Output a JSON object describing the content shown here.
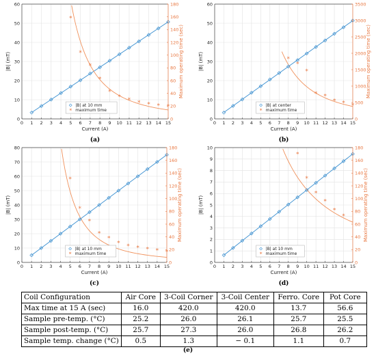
{
  "chart_data": [
    {
      "type": "line",
      "panel_label": "(a)",
      "xlabel": "Current (A)",
      "ylabel": "|B| (mT)",
      "y2label": "Maximum operating time (sec)",
      "xlim": [
        0,
        15
      ],
      "ylim": [
        0,
        60
      ],
      "y2lim": [
        0,
        180
      ],
      "xticks": [
        "0",
        "1",
        "2",
        "3",
        "4",
        "5",
        "6",
        "7",
        "8",
        "9",
        "10",
        "11",
        "12",
        "13",
        "14",
        "15"
      ],
      "yticks": [
        "0",
        "10",
        "20",
        "30",
        "40",
        "50",
        "60"
      ],
      "y2ticks": [
        "0",
        "20",
        "40",
        "60",
        "80",
        "100",
        "120",
        "140",
        "160",
        "180"
      ],
      "grid": true,
      "legend_placement": "lower-center",
      "series": [
        {
          "name": "|B| at 10 mm",
          "axis": "left",
          "marker": "diamond",
          "color": "#3a8fd0",
          "x": [
            1,
            2,
            3,
            4,
            5,
            6,
            7,
            8,
            9,
            10,
            11,
            12,
            13,
            14,
            15
          ],
          "values": [
            3.3,
            6.7,
            10.1,
            13.5,
            16.9,
            20.2,
            23.7,
            27.0,
            30.4,
            33.8,
            37.2,
            40.5,
            43.9,
            47.3,
            50.7
          ]
        },
        {
          "name": "maximum time",
          "axis": "right",
          "marker": "asterisk",
          "color": "#e8763f",
          "x": [
            5,
            6,
            7,
            8,
            9,
            10,
            11,
            12,
            13,
            14,
            15
          ],
          "values": [
            158,
            104,
            84,
            63,
            43,
            35,
            30,
            26,
            23,
            21,
            20
          ]
        }
      ],
      "fit_line_color": "#3a8fd0",
      "fit_curve": {
        "axis": "right",
        "color": "#f0905a",
        "x_start": 5.1,
        "y_start": 178,
        "x_end": 15,
        "y_end": 14
      }
    },
    {
      "type": "line",
      "panel_label": "(b)",
      "xlabel": "Current (A)",
      "ylabel": "|B| (mT)",
      "y2label": "Maximum operating time (sec)",
      "xlim": [
        0,
        15
      ],
      "ylim": [
        0,
        60
      ],
      "y2lim": [
        0,
        3500
      ],
      "xticks": [
        "0",
        "1",
        "2",
        "3",
        "4",
        "5",
        "6",
        "7",
        "8",
        "9",
        "10",
        "11",
        "12",
        "13",
        "14",
        "15"
      ],
      "yticks": [
        "0",
        "10",
        "20",
        "30",
        "40",
        "50",
        "60"
      ],
      "y2ticks": [
        "0",
        "500",
        "1000",
        "1500",
        "2000",
        "2500",
        "3000",
        "3500"
      ],
      "grid": true,
      "legend_placement": "lower-center",
      "series": [
        {
          "name": "|B| at center",
          "axis": "left",
          "marker": "diamond",
          "color": "#3a8fd0",
          "x": [
            1,
            2,
            3,
            4,
            5,
            6,
            7,
            8,
            9,
            10,
            11,
            12,
            13,
            14,
            15
          ],
          "values": [
            3.3,
            6.8,
            10.2,
            13.7,
            17.1,
            20.6,
            24.0,
            27.4,
            30.7,
            34.2,
            37.6,
            41.0,
            44.5,
            47.9,
            51.4
          ]
        },
        {
          "name": "maximum time",
          "axis": "right",
          "marker": "asterisk",
          "color": "#e8763f",
          "x": [
            8,
            9,
            10,
            11,
            12,
            13,
            14,
            15
          ],
          "values": [
            1840,
            1680,
            1460,
            770,
            700,
            560,
            490,
            420
          ]
        }
      ],
      "fit_line_color": "#3a8fd0",
      "fit_curve": {
        "axis": "right",
        "color": "#f0905a",
        "x_start": 7.3,
        "y_start": 2050,
        "x_end": 15,
        "y_end": 380
      }
    },
    {
      "type": "line",
      "panel_label": "(c)",
      "xlabel": "Current (A)",
      "ylabel": "|B| (mT)",
      "y2label": "Maximum operating time (sec)",
      "xlim": [
        0,
        15
      ],
      "ylim": [
        0,
        80
      ],
      "y2lim": [
        0,
        180
      ],
      "xticks": [
        "0",
        "1",
        "2",
        "3",
        "4",
        "5",
        "6",
        "7",
        "8",
        "9",
        "10",
        "11",
        "12",
        "13",
        "14",
        "15"
      ],
      "yticks": [
        "0",
        "10",
        "20",
        "30",
        "40",
        "50",
        "60",
        "70",
        "80"
      ],
      "y2ticks": [
        "0",
        "20",
        "40",
        "60",
        "80",
        "100",
        "120",
        "140",
        "160",
        "180"
      ],
      "grid": true,
      "legend_placement": "lower-center",
      "series": [
        {
          "name": "|B| at 10 mm",
          "axis": "left",
          "marker": "diamond",
          "color": "#3a8fd0",
          "x": [
            1,
            2,
            3,
            4,
            5,
            6,
            7,
            8,
            9,
            10,
            11,
            12,
            13,
            14,
            15
          ],
          "values": [
            5.0,
            10.0,
            15.0,
            20.0,
            25.0,
            30.0,
            35.0,
            40.0,
            45.0,
            50.0,
            55.0,
            60.0,
            65.0,
            70.0,
            75.0
          ]
        },
        {
          "name": "maximum time",
          "axis": "right",
          "marker": "asterisk",
          "color": "#e8763f",
          "x": [
            5,
            6,
            7,
            8,
            9,
            10,
            11,
            12,
            13,
            14,
            15
          ],
          "values": [
            131,
            85,
            65,
            46,
            38,
            31,
            26,
            23,
            21,
            19,
            17
          ]
        }
      ],
      "fit_line_color": "#3a8fd0",
      "fit_curve": {
        "axis": "right",
        "color": "#f0905a",
        "x_start": 4.1,
        "y_start": 178,
        "x_end": 15,
        "y_end": 8
      }
    },
    {
      "type": "line",
      "panel_label": "(d)",
      "xlabel": "Current (A)",
      "ylabel": "|B| (mT)",
      "y2label": "Maximum operating time (sec)",
      "xlim": [
        0,
        15
      ],
      "ylim": [
        0,
        10
      ],
      "y2lim": [
        0,
        180
      ],
      "xticks": [
        "0",
        "1",
        "2",
        "3",
        "4",
        "5",
        "6",
        "7",
        "8",
        "9",
        "10",
        "11",
        "12",
        "13",
        "14",
        "15"
      ],
      "yticks": [
        "0",
        "1",
        "2",
        "3",
        "4",
        "5",
        "6",
        "7",
        "8",
        "9",
        "10"
      ],
      "y2ticks": [
        "0",
        "20",
        "40",
        "60",
        "80",
        "100",
        "120",
        "140",
        "160",
        "180"
      ],
      "grid": true,
      "legend_placement": "lower-center",
      "series": [
        {
          "name": "|B| at 10 mm",
          "axis": "left",
          "marker": "diamond",
          "color": "#3a8fd0",
          "x": [
            1,
            2,
            3,
            4,
            5,
            6,
            7,
            8,
            9,
            10,
            11,
            12,
            13,
            14,
            15
          ],
          "values": [
            0.63,
            1.26,
            1.89,
            2.52,
            3.15,
            3.78,
            4.41,
            5.04,
            5.67,
            6.3,
            6.93,
            7.56,
            8.19,
            8.82,
            9.45
          ]
        },
        {
          "name": "maximum time",
          "axis": "right",
          "marker": "asterisk",
          "color": "#e8763f",
          "x": [
            9,
            10,
            11,
            12,
            13,
            14
          ],
          "values": [
            170,
            132,
            109,
            96,
            82,
            73
          ]
        }
      ],
      "fit_line_color": "#3a8fd0",
      "fit_curve": {
        "axis": "right",
        "color": "#f0905a",
        "x_start": 7.4,
        "y_start": 178,
        "x_end": 15,
        "y_end": 63
      }
    },
    {
      "type": "table",
      "panel_label": "(e)",
      "columns": [
        "Coil Configuration",
        "Air Core",
        "3-Coil Corner",
        "3-Coil Center",
        "Ferro. Core",
        "Pot Core"
      ],
      "rows": [
        [
          "Max time at 15 A (sec)",
          "16.0",
          "420.0",
          "420.0",
          "13.7",
          "56.6"
        ],
        [
          "Sample pre-temp. (°C)",
          "25.2",
          "26.0",
          "26.1",
          "25.7",
          "25.5"
        ],
        [
          "Sample post-temp. (°C)",
          "25.7",
          "27.3",
          "26.0",
          "26.8",
          "26.2"
        ],
        [
          "Sample temp. change (°C)",
          "0.5",
          "1.3",
          "− 0.1",
          "1.1",
          "0.7"
        ]
      ]
    }
  ]
}
